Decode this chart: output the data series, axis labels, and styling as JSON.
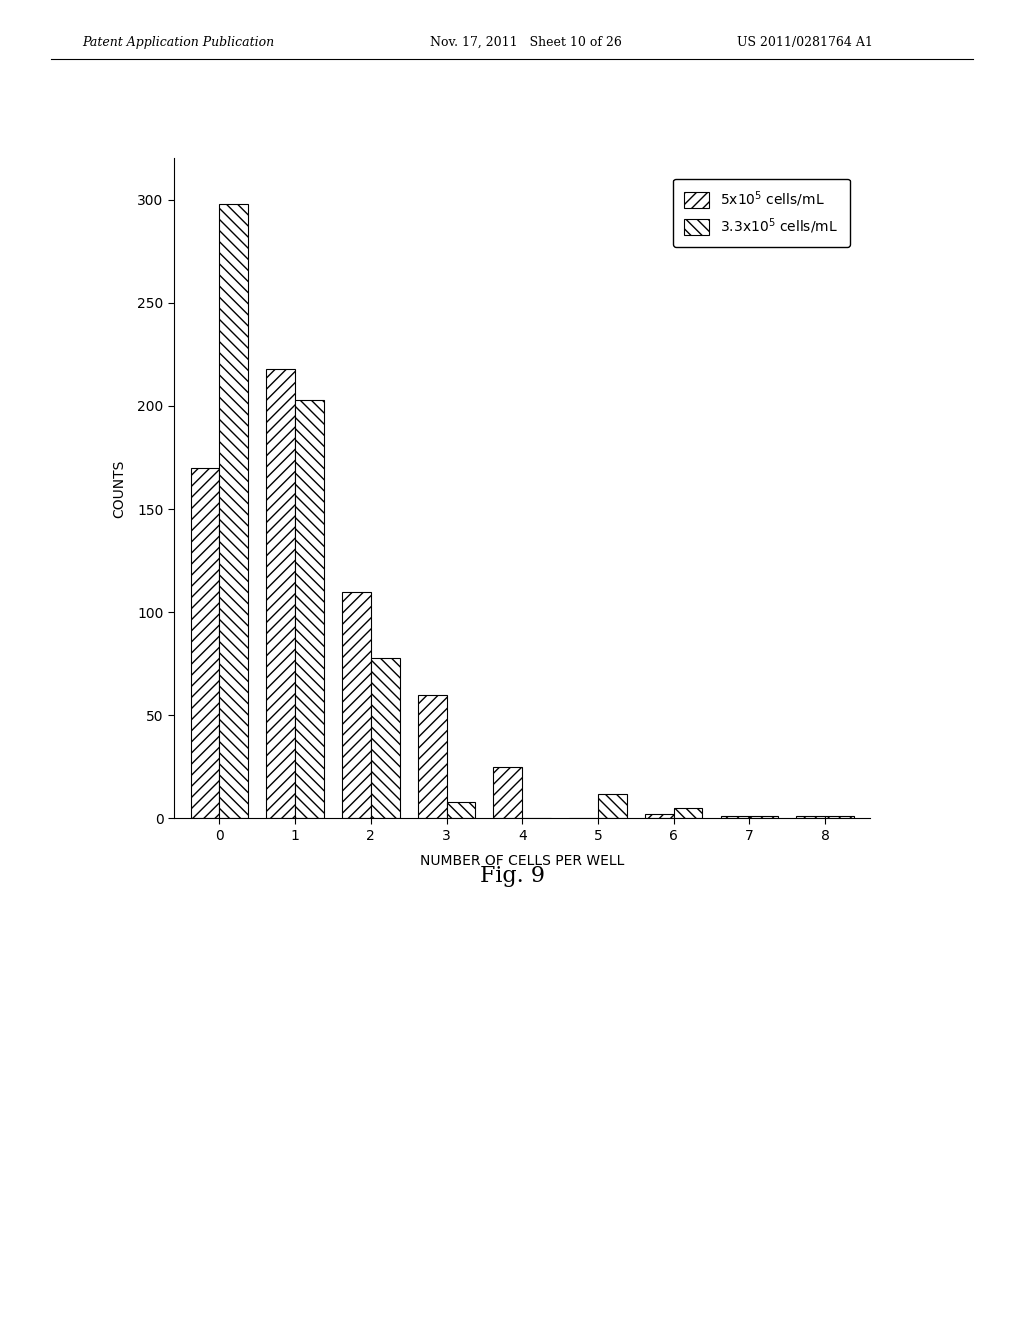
{
  "categories": [
    0,
    1,
    2,
    3,
    4,
    5,
    6,
    7,
    8
  ],
  "series1_label": "5x10$^5$ cells/mL",
  "series2_label": "3.3x10$^5$ cells/mL",
  "series1_values": [
    170,
    218,
    110,
    60,
    25,
    0,
    2,
    1,
    1
  ],
  "series2_values": [
    298,
    203,
    78,
    8,
    0,
    12,
    5,
    1,
    1
  ],
  "xlabel": "NUMBER OF CELLS PER WELL",
  "ylabel": "COUNTS",
  "ylim": [
    0,
    320
  ],
  "yticks": [
    0,
    50,
    100,
    150,
    200,
    250,
    300
  ],
  "xticks": [
    0,
    1,
    2,
    3,
    4,
    5,
    6,
    7,
    8
  ],
  "fig_title": "Fig. 9",
  "header_left": "Patent Application Publication",
  "header_mid": "Nov. 17, 2011   Sheet 10 of 26",
  "header_right": "US 2011/0281764 A1",
  "bar_width": 0.38,
  "hatch1": "///",
  "hatch2": "\\\\\\",
  "bar_color": "white",
  "bar_edgecolor": "black",
  "background_color": "white"
}
